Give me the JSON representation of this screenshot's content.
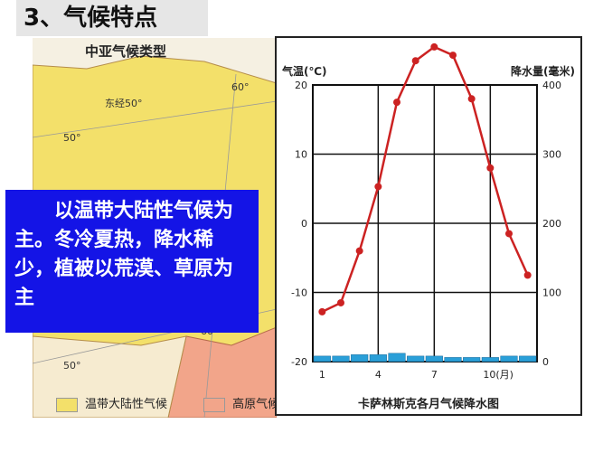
{
  "slide": {
    "title": "3、气候特点"
  },
  "map": {
    "title": "中亚气候类型",
    "labels": {
      "lon_east_50": "东经50°",
      "lat_50_top": "50°",
      "lon_60": "60°",
      "lat_50_bottom": "50°",
      "lon_60_bottom": "60°"
    },
    "legend": [
      {
        "label": "温带大陆性气候",
        "color": "#f3e06a"
      },
      {
        "label": "高原气候",
        "color": "#f2a58a"
      }
    ]
  },
  "callout": {
    "text": "　　以温带大陆性气候为主。冬冷夏热，降水稀少，植被以荒漠、草原为主"
  },
  "chart_data": {
    "type": "line+bar",
    "title": "卡萨林斯克各月气候降水图",
    "x": [
      1,
      2,
      3,
      4,
      5,
      6,
      7,
      8,
      9,
      10,
      11,
      12
    ],
    "x_ticks": [
      "1",
      "4",
      "7",
      "10(月)"
    ],
    "temperature": {
      "ylabel": "气温(℃)",
      "ylim": [
        -20,
        20
      ],
      "y_ticks": [
        20,
        10,
        0,
        -10,
        -20
      ],
      "values": [
        -12.8,
        -11.5,
        -4,
        5.3,
        17.5,
        23.5,
        25.5,
        24.3,
        18,
        8,
        -1.5,
        -7.5
      ],
      "color": "#cc2222"
    },
    "precipitation": {
      "ylabel": "降水量(毫米)",
      "ylim": [
        0,
        400
      ],
      "y_ticks": [
        400,
        300,
        200,
        100,
        0
      ],
      "values": [
        8,
        8,
        10,
        10,
        12,
        8,
        8,
        6,
        6,
        6,
        8,
        8
      ],
      "color": "#2a9fd8"
    },
    "grid": true
  }
}
